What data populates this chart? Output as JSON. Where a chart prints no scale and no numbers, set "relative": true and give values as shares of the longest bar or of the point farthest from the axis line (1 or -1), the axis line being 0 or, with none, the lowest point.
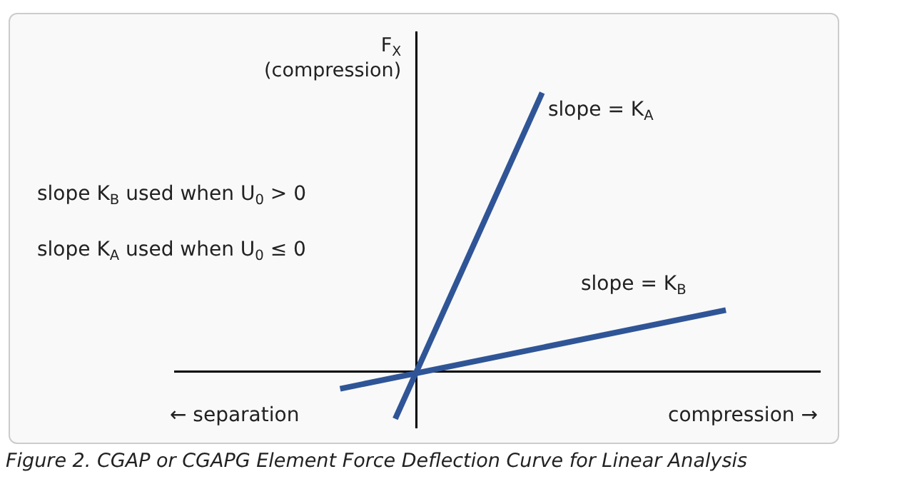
{
  "chart_data": {
    "type": "line",
    "relative": true,
    "ylabel": "F$_{X}$\n(compression)",
    "legend": false,
    "grid": false,
    "marker": "none",
    "line_style": "solid",
    "categories": [
      null,
      null,
      null,
      null,
      null,
      null,
      null,
      null,
      null,
      null,
      null,
      null,
      null,
      null,
      null,
      null,
      null,
      null,
      null,
      null,
      null,
      null
    ],
    "series": [
      {
        "name": "slope = K$_{A}$",
        "color": "#2f5597",
        "values": [
          null,
          null,
          null,
          -0.17,
          null,
          null,
          null,
          null,
          null,
          null,
          null,
          1,
          null,
          null,
          null,
          null,
          null,
          null,
          null,
          null,
          null,
          null
        ]
      },
      {
        "name": "slope = K$_{B}$",
        "color": "#2f5597",
        "values": [
          -0.062,
          null,
          null,
          null,
          null,
          null,
          null,
          null,
          null,
          null,
          null,
          null,
          null,
          null,
          null,
          null,
          null,
          null,
          null,
          null,
          null,
          0.22
        ]
      }
    ],
    "annotations": [
      "slope K$_{B}$ used when U$_{0}$ > 0",
      "slope K$_{A}$ used when U$_{0}$ ≤ 0",
      "← separation",
      "compression →",
      "Figure 2. CGAP or CGAPG Element Force Deflection Curve for Linear Analysis"
    ]
  }
}
